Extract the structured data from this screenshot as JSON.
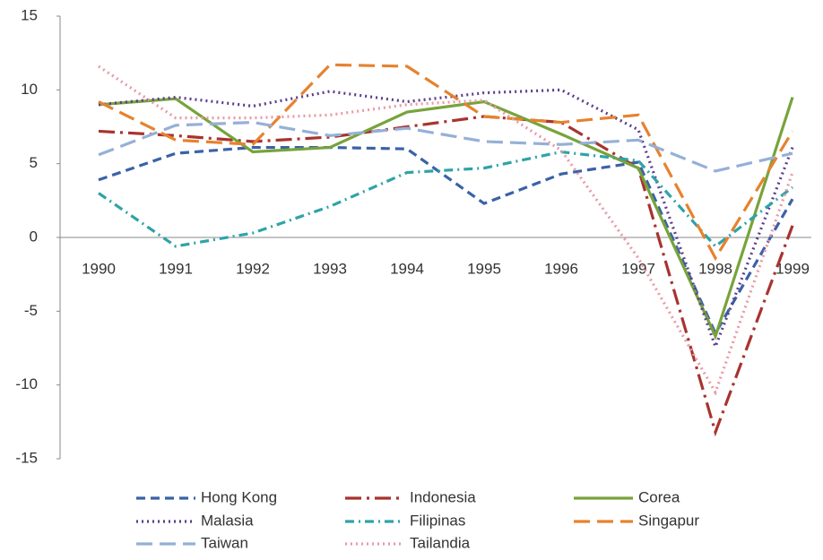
{
  "chart_data": {
    "type": "line",
    "categories": [
      "1990",
      "1991",
      "1992",
      "1993",
      "1994",
      "1995",
      "1996",
      "1997",
      "1998",
      "1999"
    ],
    "ylim": [
      -15,
      15
    ],
    "yticks": [
      -15,
      -10,
      -5,
      0,
      5,
      10,
      15
    ],
    "grid": false,
    "legend": "bottom",
    "series": [
      {
        "name": "Hong Kong",
        "color": "#3a62a7",
        "dash": "dash",
        "values": [
          3.9,
          5.7,
          6.1,
          6.1,
          6.0,
          2.3,
          4.3,
          5.1,
          -6.5,
          2.6
        ]
      },
      {
        "name": "Indonesia",
        "color": "#a8332f",
        "dash": "longdashdot",
        "values": [
          7.2,
          6.9,
          6.5,
          6.8,
          7.5,
          8.2,
          7.8,
          4.7,
          -13.2,
          0.8
        ]
      },
      {
        "name": "Corea",
        "color": "#77a33b",
        "dash": "solid",
        "values": [
          9.0,
          9.4,
          5.8,
          6.1,
          8.5,
          9.2,
          7.0,
          4.7,
          -6.7,
          9.5
        ]
      },
      {
        "name": "Malasia",
        "color": "#5b3e8e",
        "dash": "dot",
        "values": [
          9.0,
          9.5,
          8.9,
          9.9,
          9.2,
          9.8,
          10.0,
          7.3,
          -7.4,
          6.1
        ]
      },
      {
        "name": "Filipinas",
        "color": "#2ea3a8",
        "dash": "dashdot",
        "values": [
          3.0,
          -0.6,
          0.3,
          2.1,
          4.4,
          4.7,
          5.8,
          5.2,
          -0.6,
          3.4
        ]
      },
      {
        "name": "Singapur",
        "color": "#e6822e",
        "dash": "longdash",
        "values": [
          9.2,
          6.6,
          6.3,
          11.7,
          11.6,
          8.2,
          7.8,
          8.3,
          -1.4,
          7.2
        ]
      },
      {
        "name": "Taiwan",
        "color": "#95b0d7",
        "dash": "longdash",
        "values": [
          5.6,
          7.6,
          7.8,
          6.9,
          7.4,
          6.5,
          6.3,
          6.6,
          4.5,
          5.7
        ]
      },
      {
        "name": "Tailandia",
        "color": "#e99aa6",
        "dash": "dot",
        "values": [
          11.6,
          8.1,
          8.1,
          8.3,
          9.0,
          9.3,
          5.9,
          -1.4,
          -10.5,
          4.4
        ]
      }
    ]
  }
}
